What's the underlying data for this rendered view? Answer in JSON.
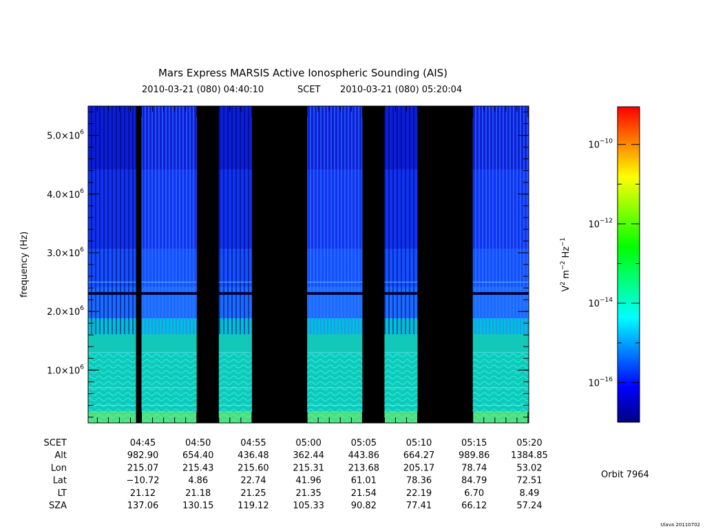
{
  "chart_data": {
    "type": "heatmap",
    "title": "Mars Express MARSIS Active Ionospheric Sounding (AIS)",
    "time_range": {
      "start": "2010-03-21 (080) 04:40:10",
      "frame": "SCET",
      "end": "2010-03-21 (080) 05:20:04"
    },
    "ylabel": "frequency (Hz)",
    "y_ticks": [
      {
        "mant": "1.0",
        "exp": "6",
        "value": 1000000
      },
      {
        "mant": "2.0",
        "exp": "6",
        "value": 2000000
      },
      {
        "mant": "3.0",
        "exp": "6",
        "value": 3000000
      },
      {
        "mant": "4.0",
        "exp": "6",
        "value": 4000000
      },
      {
        "mant": "5.0",
        "exp": "6",
        "value": 5000000
      }
    ],
    "ylim": [
      100000,
      5500000
    ],
    "xlim": [
      "04:40:10",
      "05:20:04"
    ],
    "x_ticks": [
      "04:45",
      "04:50",
      "04:55",
      "05:00",
      "05:05",
      "05:10",
      "05:15",
      "05:20"
    ],
    "data_segments": [
      {
        "start": "04:40:10",
        "end": "04:44:30"
      },
      {
        "start": "04:45:00",
        "end": "04:50:00"
      },
      {
        "start": "04:52:00",
        "end": "04:55:00"
      },
      {
        "start": "05:00:00",
        "end": "05:05:00"
      },
      {
        "start": "05:07:00",
        "end": "05:10:00"
      },
      {
        "start": "05:15:00",
        "end": "05:20:04"
      }
    ],
    "colorbar": {
      "label_base": "V",
      "label_unit": "m",
      "label_hz": "Hz",
      "label_exps": [
        "2",
        "−2",
        "−1"
      ],
      "ticks": [
        {
          "base": "10",
          "exp": "−10",
          "value": -10
        },
        {
          "base": "10",
          "exp": "−12",
          "value": -12
        },
        {
          "base": "10",
          "exp": "−14",
          "value": -14
        },
        {
          "base": "10",
          "exp": "−16",
          "value": -16
        }
      ],
      "range_log10": [
        -17,
        -9.05
      ],
      "colors": [
        "#000080",
        "#0000ff",
        "#0080ff",
        "#00ffff",
        "#00ff80",
        "#00ff00",
        "#80ff00",
        "#ffff00",
        "#ff8000",
        "#ff0000"
      ]
    },
    "ephemeris": {
      "rows": [
        {
          "label": "SCET",
          "values": [
            "04:45",
            "04:50",
            "04:55",
            "05:00",
            "05:05",
            "05:10",
            "05:15",
            "05:20"
          ]
        },
        {
          "label": "Alt",
          "values": [
            "982.90",
            "654.40",
            "436.48",
            "362.44",
            "443.86",
            "664.27",
            "989.86",
            "1384.85"
          ]
        },
        {
          "label": "Lon",
          "values": [
            "215.07",
            "215.43",
            "215.60",
            "215.31",
            "213.68",
            "205.17",
            "78.74",
            "53.02"
          ]
        },
        {
          "label": "Lat",
          "values": [
            "−10.72",
            "4.86",
            "22.74",
            "41.96",
            "61.01",
            "78.36",
            "84.79",
            "72.51"
          ]
        },
        {
          "label": "LT",
          "values": [
            "21.12",
            "21.18",
            "21.25",
            "21.35",
            "21.54",
            "22.19",
            "6.70",
            "8.49"
          ]
        },
        {
          "label": "SZA",
          "values": [
            "137.06",
            "130.15",
            "119.12",
            "105.33",
            "90.82",
            "77.41",
            "66.12",
            "57.24"
          ]
        }
      ]
    },
    "orbit_label": "Orbit 7964",
    "footer": "Ulava 20110702"
  }
}
